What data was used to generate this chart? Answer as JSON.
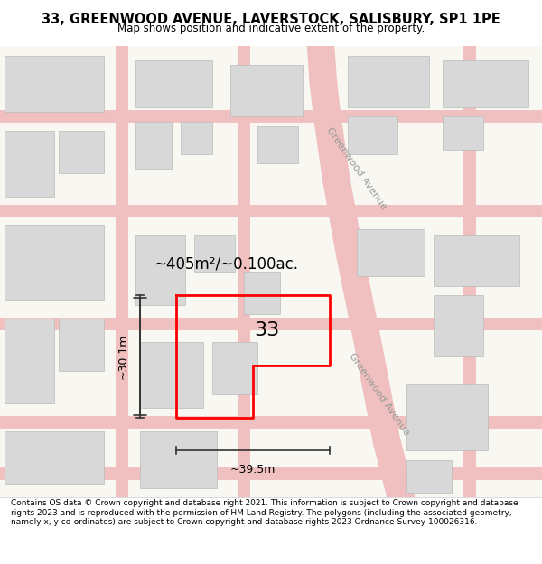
{
  "title_line1": "33, GREENWOOD AVENUE, LAVERSTOCK, SALISBURY, SP1 1PE",
  "title_line2": "Map shows position and indicative extent of the property.",
  "footer_text": "Contains OS data © Crown copyright and database right 2021. This information is subject to Crown copyright and database rights 2023 and is reproduced with the permission of HM Land Registry. The polygons (including the associated geometry, namely x, y co-ordinates) are subject to Crown copyright and database rights 2023 Ordnance Survey 100026316.",
  "area_label": "~405m²/~0.100ac.",
  "number_label": "33",
  "width_label": "~39.5m",
  "height_label": "~30.1m",
  "street_label_top": "Greenwood Avenue",
  "street_label_bottom": "Greenwood Avenue",
  "bg_color": "#f5f5f0",
  "map_bg": "#ffffff",
  "road_color": "#f5c4c4",
  "building_color": "#d9d9d9",
  "building_edge_color": "#bbbbbb",
  "plot_color": "#ff0000",
  "plot_fill": "none",
  "dim_line_color": "#333333"
}
